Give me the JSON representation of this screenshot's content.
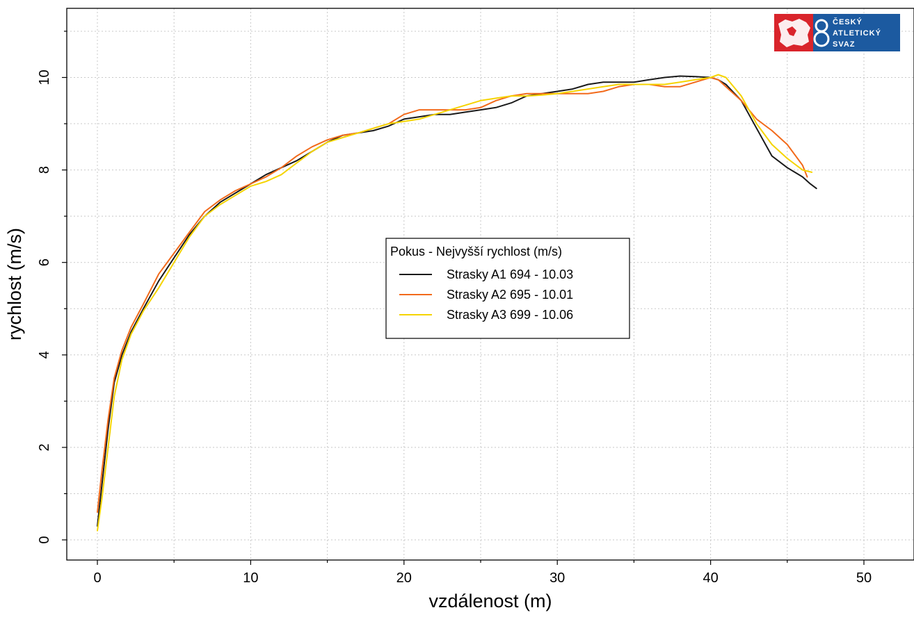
{
  "chart_data": {
    "type": "line",
    "xlabel": "vzdálenost (m)",
    "ylabel": "rychlost (m/s)",
    "xlim": [
      -2,
      53
    ],
    "ylim": [
      -0.4,
      11.5
    ],
    "xticks": [
      0,
      10,
      20,
      30,
      40,
      50
    ],
    "yticks": [
      0,
      2,
      4,
      6,
      8,
      10
    ],
    "xtick_labels": [
      "0",
      "10",
      "20",
      "30",
      "40",
      "50"
    ],
    "ytick_labels": [
      "0",
      "2",
      "4",
      "6",
      "8",
      "10"
    ],
    "grid": true,
    "legend": {
      "title": "Pokus - Nejvyšší rychlost (m/s)",
      "placement": "center"
    },
    "series": [
      {
        "name": "Strasky A1 694 - 10.03",
        "color": "#1a1a1a",
        "points": [
          [
            0,
            0.3
          ],
          [
            0.3,
            1.2
          ],
          [
            0.7,
            2.4
          ],
          [
            1.1,
            3.4
          ],
          [
            1.6,
            4.0
          ],
          [
            2.2,
            4.5
          ],
          [
            3.0,
            5.0
          ],
          [
            4.0,
            5.6
          ],
          [
            5.0,
            6.1
          ],
          [
            6.0,
            6.6
          ],
          [
            7.0,
            7.0
          ],
          [
            8.0,
            7.3
          ],
          [
            9.0,
            7.5
          ],
          [
            10.0,
            7.7
          ],
          [
            11.0,
            7.9
          ],
          [
            12.0,
            8.05
          ],
          [
            13.0,
            8.2
          ],
          [
            14.0,
            8.4
          ],
          [
            15.0,
            8.6
          ],
          [
            16.0,
            8.75
          ],
          [
            17.0,
            8.8
          ],
          [
            18.0,
            8.85
          ],
          [
            19.0,
            8.95
          ],
          [
            20.0,
            9.1
          ],
          [
            21.0,
            9.15
          ],
          [
            22.0,
            9.2
          ],
          [
            23.0,
            9.2
          ],
          [
            24.0,
            9.25
          ],
          [
            25.0,
            9.3
          ],
          [
            26.0,
            9.35
          ],
          [
            27.0,
            9.45
          ],
          [
            28.0,
            9.6
          ],
          [
            29.0,
            9.65
          ],
          [
            30.0,
            9.7
          ],
          [
            31.0,
            9.75
          ],
          [
            32.0,
            9.85
          ],
          [
            33.0,
            9.9
          ],
          [
            34.0,
            9.9
          ],
          [
            35.0,
            9.9
          ],
          [
            36.0,
            9.95
          ],
          [
            37.0,
            10.0
          ],
          [
            38.0,
            10.03
          ],
          [
            39.0,
            10.02
          ],
          [
            40.0,
            10.0
          ],
          [
            40.5,
            9.95
          ],
          [
            41.0,
            9.85
          ],
          [
            42.0,
            9.5
          ],
          [
            43.0,
            8.9
          ],
          [
            44.0,
            8.3
          ],
          [
            45.0,
            8.05
          ],
          [
            46.0,
            7.85
          ],
          [
            46.5,
            7.7
          ],
          [
            46.9,
            7.6
          ]
        ]
      },
      {
        "name": "Strasky A2 695 - 10.01",
        "color": "#f26a1b",
        "points": [
          [
            0,
            0.6
          ],
          [
            0.3,
            1.5
          ],
          [
            0.7,
            2.6
          ],
          [
            1.1,
            3.5
          ],
          [
            1.6,
            4.1
          ],
          [
            2.2,
            4.6
          ],
          [
            3.0,
            5.1
          ],
          [
            4.0,
            5.75
          ],
          [
            5.0,
            6.2
          ],
          [
            6.0,
            6.65
          ],
          [
            7.0,
            7.1
          ],
          [
            8.0,
            7.35
          ],
          [
            9.0,
            7.55
          ],
          [
            10.0,
            7.7
          ],
          [
            11.0,
            7.85
          ],
          [
            12.0,
            8.05
          ],
          [
            13.0,
            8.3
          ],
          [
            14.0,
            8.5
          ],
          [
            15.0,
            8.65
          ],
          [
            16.0,
            8.75
          ],
          [
            17.0,
            8.8
          ],
          [
            18.0,
            8.9
          ],
          [
            19.0,
            9.0
          ],
          [
            20.0,
            9.2
          ],
          [
            21.0,
            9.3
          ],
          [
            22.0,
            9.3
          ],
          [
            23.0,
            9.3
          ],
          [
            24.0,
            9.3
          ],
          [
            25.0,
            9.35
          ],
          [
            26.0,
            9.5
          ],
          [
            27.0,
            9.6
          ],
          [
            28.0,
            9.65
          ],
          [
            29.0,
            9.65
          ],
          [
            30.0,
            9.65
          ],
          [
            31.0,
            9.65
          ],
          [
            32.0,
            9.65
          ],
          [
            33.0,
            9.7
          ],
          [
            34.0,
            9.8
          ],
          [
            35.0,
            9.85
          ],
          [
            36.0,
            9.85
          ],
          [
            37.0,
            9.8
          ],
          [
            38.0,
            9.8
          ],
          [
            39.0,
            9.9
          ],
          [
            40.0,
            10.0
          ],
          [
            40.5,
            9.95
          ],
          [
            41.0,
            9.8
          ],
          [
            42.0,
            9.5
          ],
          [
            43.0,
            9.1
          ],
          [
            44.0,
            8.85
          ],
          [
            45.0,
            8.55
          ],
          [
            46.0,
            8.1
          ],
          [
            46.3,
            7.85
          ]
        ]
      },
      {
        "name": "Strasky A3 699 - 10.06",
        "color": "#f5d400",
        "points": [
          [
            0,
            0.2
          ],
          [
            0.3,
            0.9
          ],
          [
            0.7,
            2.0
          ],
          [
            1.1,
            3.1
          ],
          [
            1.6,
            3.9
          ],
          [
            2.2,
            4.45
          ],
          [
            3.0,
            4.95
          ],
          [
            4.0,
            5.45
          ],
          [
            5.0,
            6.0
          ],
          [
            6.0,
            6.55
          ],
          [
            7.0,
            7.0
          ],
          [
            8.0,
            7.25
          ],
          [
            9.0,
            7.45
          ],
          [
            10.0,
            7.65
          ],
          [
            11.0,
            7.75
          ],
          [
            12.0,
            7.9
          ],
          [
            13.0,
            8.15
          ],
          [
            14.0,
            8.4
          ],
          [
            15.0,
            8.6
          ],
          [
            16.0,
            8.7
          ],
          [
            17.0,
            8.8
          ],
          [
            18.0,
            8.9
          ],
          [
            19.0,
            9.0
          ],
          [
            20.0,
            9.05
          ],
          [
            21.0,
            9.1
          ],
          [
            22.0,
            9.2
          ],
          [
            23.0,
            9.3
          ],
          [
            24.0,
            9.4
          ],
          [
            25.0,
            9.5
          ],
          [
            26.0,
            9.55
          ],
          [
            27.0,
            9.6
          ],
          [
            28.0,
            9.6
          ],
          [
            29.0,
            9.62
          ],
          [
            30.0,
            9.65
          ],
          [
            31.0,
            9.7
          ],
          [
            32.0,
            9.75
          ],
          [
            33.0,
            9.8
          ],
          [
            34.0,
            9.85
          ],
          [
            35.0,
            9.85
          ],
          [
            36.0,
            9.85
          ],
          [
            37.0,
            9.85
          ],
          [
            38.0,
            9.9
          ],
          [
            39.0,
            9.95
          ],
          [
            40.0,
            10.0
          ],
          [
            40.5,
            10.06
          ],
          [
            41.0,
            10.0
          ],
          [
            42.0,
            9.6
          ],
          [
            43.0,
            9.0
          ],
          [
            44.0,
            8.55
          ],
          [
            45.0,
            8.25
          ],
          [
            46.0,
            8.0
          ],
          [
            46.6,
            7.95
          ]
        ]
      }
    ]
  },
  "logo": {
    "text_lines": [
      "ČESKÝ",
      "ATLETICKÝ",
      "SVAZ"
    ],
    "red": "#d9242b",
    "blue": "#1c5aa0"
  }
}
